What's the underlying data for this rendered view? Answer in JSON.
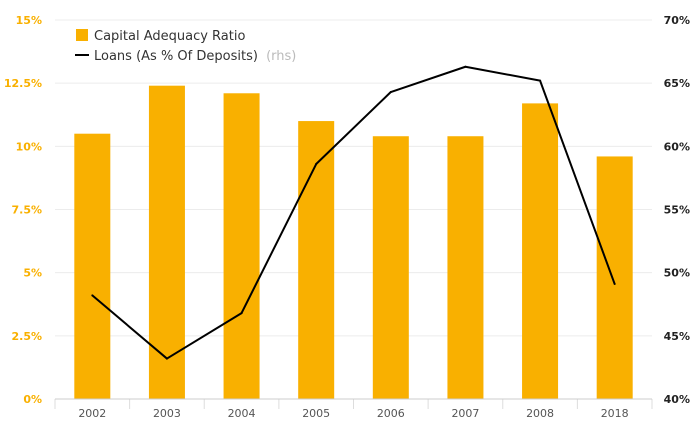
{
  "chart_data": {
    "type": "bar",
    "categories": [
      "2002",
      "2003",
      "2004",
      "2005",
      "2006",
      "2007",
      "2008",
      "2018"
    ],
    "series": [
      {
        "name": "Capital Adequacy Ratio",
        "type": "bar",
        "axis": "left",
        "color": "#f9b000",
        "values": [
          10.5,
          12.4,
          12.1,
          11.0,
          10.4,
          10.4,
          11.7,
          9.6
        ]
      },
      {
        "name": "Loans (As % Of Deposits)",
        "name_suffix": "(rhs)",
        "type": "line",
        "axis": "right",
        "color": "#000000",
        "values": [
          48.2,
          43.2,
          46.8,
          58.6,
          64.3,
          66.3,
          65.2,
          49.1
        ]
      }
    ],
    "y_left": {
      "ylim": [
        0,
        15
      ],
      "ticks": [
        0,
        2.5,
        5,
        7.5,
        10,
        12.5,
        15
      ],
      "tick_labels": [
        "0%",
        "2.5%",
        "5%",
        "7.5%",
        "10%",
        "12.5%",
        "15%"
      ],
      "label_color": "#f9b000"
    },
    "y_right": {
      "ylim": [
        40,
        70
      ],
      "ticks": [
        40,
        45,
        50,
        55,
        60,
        65,
        70
      ],
      "tick_labels": [
        "40%",
        "45%",
        "50%",
        "55%",
        "60%",
        "65%",
        "70%"
      ]
    },
    "grid": true,
    "legend_position": "top-left"
  }
}
